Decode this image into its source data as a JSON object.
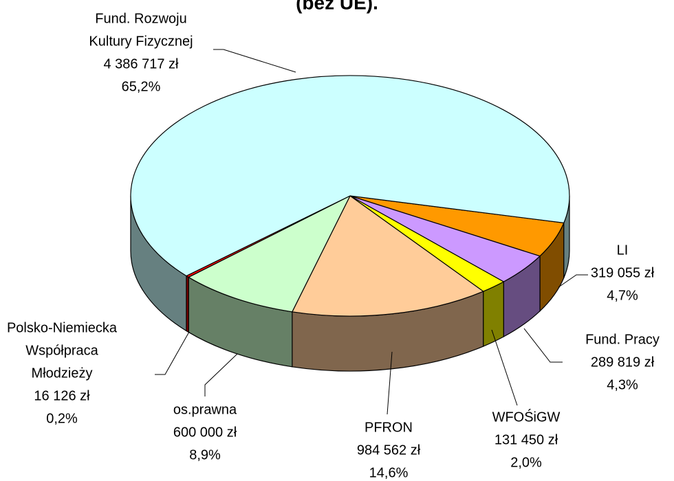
{
  "chart_data": {
    "type": "pie3d",
    "title": "(bez UE).",
    "categories": [
      [
        "LI"
      ],
      [
        "Fund. Pracy"
      ],
      [
        "WFOŚiGW"
      ],
      [
        "PFRON"
      ],
      [
        "os.prawna"
      ],
      [
        "Polsko-Niemiecka",
        "Współpraca",
        "Młodzieży"
      ],
      [
        "Fund. Rozwoju",
        "Kultury Fizycznej"
      ]
    ],
    "values": [
      319055,
      289819,
      131450,
      984562,
      600000,
      16126,
      4386717
    ],
    "value_labels": [
      "319 055 zł",
      "289 819 zł",
      "131 450 zł",
      "984 562 zł",
      "600 000 zł",
      "16 126 zł",
      "4 386 717 zł"
    ],
    "percents": [
      4.7,
      4.3,
      2.0,
      14.6,
      8.9,
      0.2,
      65.2
    ],
    "percent_labels": [
      "4,7%",
      "4,3%",
      "2,0%",
      "14,6%",
      "8,9%",
      "0,2%",
      "65,2%"
    ],
    "colors": [
      "#ff9900",
      "#cc99ff",
      "#ffff00",
      "#ffcc99",
      "#ccffcc",
      "#ff0000",
      "#ccffff"
    ]
  }
}
